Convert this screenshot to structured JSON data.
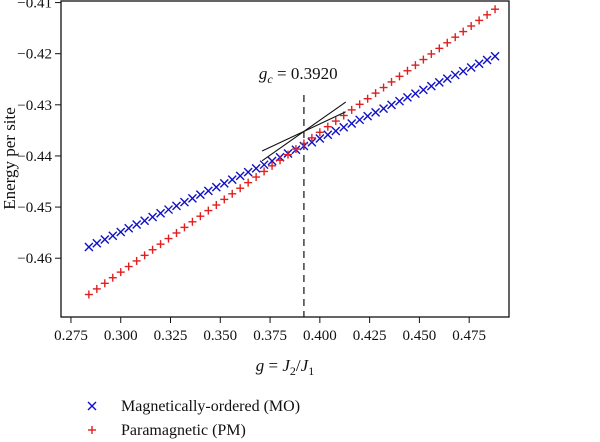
{
  "chart_data": {
    "type": "scatter",
    "xlabel": "g = J2/J1",
    "ylabel": "Energy per site",
    "xlim": [
      0.27,
      0.495
    ],
    "ylim": [
      -0.4715,
      -0.4095
    ],
    "x_ticks": [
      "0.275",
      "0.300",
      "0.325",
      "0.350",
      "0.375",
      "0.400",
      "0.425",
      "0.450",
      "0.475"
    ],
    "y_ticks": [
      "-0.46",
      "-0.45",
      "-0.44",
      "-0.43",
      "-0.42",
      "-0.41"
    ],
    "grid": false,
    "critical_point": {
      "x": 0.392,
      "y": -0.4352,
      "label": "g_c = 0.3920"
    },
    "series": [
      {
        "name": "Magnetically-ordered (MO)",
        "marker": "x",
        "color": "#1010c8",
        "x_start": 0.284,
        "x_end": 0.488,
        "x_step": 0.004,
        "y_start": -0.4578,
        "y_end": -0.4205
      },
      {
        "name": "Paramagnetic (PM)",
        "marker": "+",
        "color": "#e02020",
        "x_start": 0.284,
        "x_end": 0.488,
        "x_step": 0.004,
        "y_start": -0.4671,
        "y_end": -0.4113
      }
    ]
  }
}
